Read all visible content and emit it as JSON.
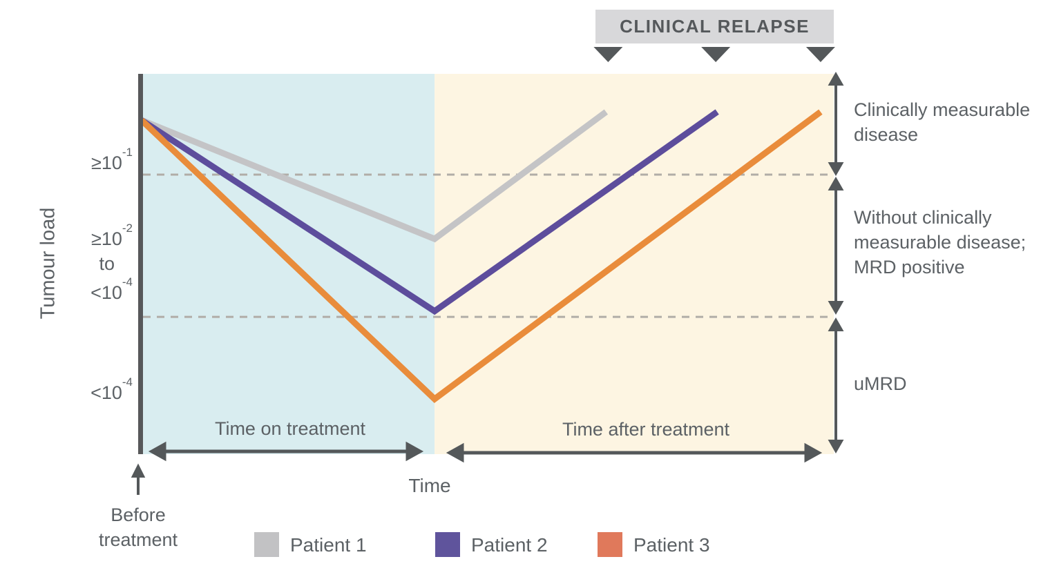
{
  "header": {
    "title": "CLINICAL RELAPSE"
  },
  "y_axis": {
    "label": "Tumour load",
    "tick_high": {
      "base": "≥10",
      "sup": "-1"
    },
    "tick_mid": {
      "line1_base": "≥10",
      "line1_sup": "-2",
      "line2": "to",
      "line3_base": "<10",
      "line3_sup": "-4"
    },
    "tick_low": {
      "base": "<10",
      "sup": "-4"
    }
  },
  "x_axis": {
    "phase_on": "Time on treatment",
    "phase_after": "Time after treatment",
    "label": "Time",
    "before": "Before\ntreatment"
  },
  "zones": {
    "measurable": "Clinically measurable\ndisease",
    "mrd_positive": "Without clinically\nmeasurable disease;\nMRD positive",
    "umrd": "uMRD"
  },
  "legend": {
    "items": [
      {
        "label": "Patient 1",
        "color": "#c2c2c4"
      },
      {
        "label": "Patient 2",
        "color": "#5f549c"
      },
      {
        "label": "Patient 3",
        "color": "#e0795b"
      }
    ]
  },
  "colors": {
    "on_treatment_bg": "#d9edf0",
    "after_treatment_bg": "#fdf5e2",
    "axis_dark": "#57585a",
    "arrow_dark": "#54585a",
    "dashed_line": "#b1ada7",
    "text": "#5c6165",
    "relapse_box_bg": "#d8d8da"
  },
  "chart_data": {
    "type": "line",
    "title": "CLINICAL RELAPSE",
    "xlabel": "Time",
    "ylabel": "Tumour load",
    "x_phases": [
      "Time on treatment",
      "Time after treatment"
    ],
    "phase_colors": {
      "on_treatment": "#d9edf0",
      "after_treatment": "#fdf5e2"
    },
    "treatment_end_x_pct": 42.5,
    "y_tick_labels": [
      "≥10-1",
      "≥10-2 to <10-4",
      "<10-4"
    ],
    "y_zone_labels": [
      "Clinically measurable disease",
      "Without clinically measurable disease; MRD positive",
      "uMRD"
    ],
    "threshold_lines_y_pct": [
      26.5,
      63.9
    ],
    "series": [
      {
        "name": "Patient 1",
        "color": "#c4c4c6",
        "points_pct": [
          [
            0.3,
            12.2
          ],
          [
            42.5,
            43.4
          ],
          [
            67.2,
            10.0
          ]
        ]
      },
      {
        "name": "Patient 2",
        "color": "#5d4d9c",
        "points_pct": [
          [
            0.3,
            12.2
          ],
          [
            42.5,
            62.4
          ],
          [
            83.2,
            10.0
          ]
        ]
      },
      {
        "name": "Patient 3",
        "color": "#e98c3b",
        "points_pct": [
          [
            0.3,
            12.2
          ],
          [
            42.5,
            85.5
          ],
          [
            98.1,
            10.0
          ]
        ]
      }
    ],
    "relapse_markers_x_pct": [
      67.5,
      83.0,
      98.1
    ]
  }
}
